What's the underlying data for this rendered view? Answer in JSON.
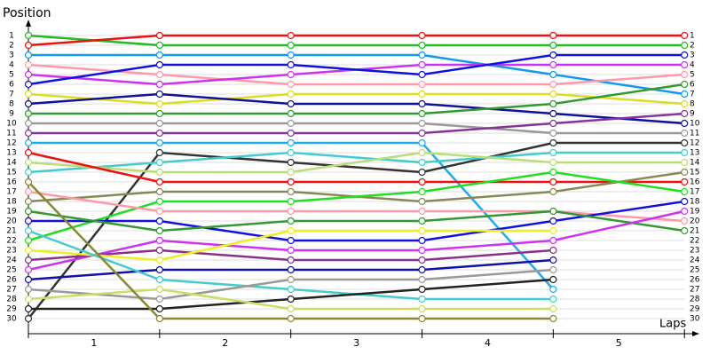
{
  "chart_data": {
    "type": "line",
    "y_label": "Position",
    "x_label": "Laps",
    "x": [
      0,
      1,
      2,
      3,
      4,
      5
    ],
    "xlim": [
      0,
      5.1
    ],
    "xticks": [
      {
        "value": 0.5,
        "label": "1"
      },
      {
        "value": 1.5,
        "label": "2"
      },
      {
        "value": 2.5,
        "label": "3"
      },
      {
        "value": 3.5,
        "label": "4"
      },
      {
        "value": 4.5,
        "label": "5"
      }
    ],
    "ylim": [
      31.5,
      -0.5
    ],
    "yticks": [
      1,
      2,
      3,
      4,
      5,
      6,
      7,
      8,
      9,
      10,
      11,
      12,
      13,
      14,
      15,
      16,
      17,
      18,
      19,
      20,
      21,
      22,
      23,
      24,
      25,
      26,
      27,
      28,
      29,
      30
    ],
    "grid": true,
    "series": [
      {
        "color": "#22bb22",
        "values": [
          1,
          2,
          2,
          2,
          2,
          2
        ]
      },
      {
        "color": "#ee1111",
        "values": [
          2,
          1,
          1,
          1,
          1,
          1
        ]
      },
      {
        "color": "#1199ee",
        "values": [
          3,
          3,
          3,
          3,
          5,
          7
        ]
      },
      {
        "color": "#ff99aa",
        "values": [
          4,
          5,
          6,
          6,
          6,
          5
        ]
      },
      {
        "color": "#cc33ee",
        "values": [
          5,
          6,
          5,
          4,
          4,
          4
        ]
      },
      {
        "color": "#1111dd",
        "values": [
          6,
          4,
          4,
          5,
          3,
          3
        ]
      },
      {
        "color": "#dddd22",
        "values": [
          7,
          8,
          7,
          7,
          7,
          8
        ]
      },
      {
        "color": "#111199",
        "values": [
          8,
          7,
          8,
          8,
          9,
          10
        ]
      },
      {
        "color": "#339933",
        "values": [
          9,
          9,
          9,
          9,
          8,
          6
        ]
      },
      {
        "color": "#999999",
        "values": [
          10,
          10,
          10,
          10,
          11,
          11
        ]
      },
      {
        "color": "#883399",
        "values": [
          11,
          11,
          11,
          11,
          10,
          9
        ]
      },
      {
        "color": "#22aaee",
        "values": [
          12,
          12,
          12,
          12,
          27,
          null
        ]
      },
      {
        "color": "#333333",
        "values": [
          30,
          13,
          14,
          15,
          12,
          12
        ]
      },
      {
        "color": "#44cccc",
        "values": [
          15,
          14,
          13,
          14,
          13,
          13
        ]
      },
      {
        "color": "#bbdd77",
        "values": [
          14,
          15,
          15,
          13,
          14,
          14
        ]
      },
      {
        "color": "#ee1111",
        "values": [
          13,
          16,
          16,
          16,
          16,
          16
        ]
      },
      {
        "color": "#888855",
        "values": [
          18,
          17,
          17,
          18,
          17,
          15
        ]
      },
      {
        "color": "#22dd22",
        "values": [
          22,
          18,
          18,
          17,
          15,
          17
        ]
      },
      {
        "color": "#ff99aa",
        "values": [
          17,
          19,
          19,
          19,
          19,
          20
        ]
      },
      {
        "color": "#1111dd",
        "values": [
          20,
          20,
          22,
          22,
          20,
          18
        ]
      },
      {
        "color": "#339933",
        "values": [
          19,
          21,
          20,
          20,
          19,
          21
        ]
      },
      {
        "color": "#cc33ee",
        "values": [
          25,
          22,
          23,
          23,
          22,
          19
        ]
      },
      {
        "color": "#883388",
        "values": [
          24,
          23,
          24,
          24,
          23,
          null
        ]
      },
      {
        "color": "#eeee22",
        "values": [
          23,
          24,
          21,
          21,
          21,
          null
        ]
      },
      {
        "color": "#1111aa",
        "values": [
          26,
          25,
          25,
          25,
          24,
          null
        ]
      },
      {
        "color": "#44cccc",
        "values": [
          21,
          26,
          27,
          28,
          28,
          null
        ]
      },
      {
        "color": "#999999",
        "values": [
          27,
          28,
          26,
          26,
          25,
          null
        ]
      },
      {
        "color": "#222222",
        "values": [
          29,
          29,
          28,
          27,
          26,
          null
        ]
      },
      {
        "color": "#ccdd66",
        "values": [
          28,
          27,
          29,
          29,
          29,
          null
        ]
      },
      {
        "color": "#888833",
        "values": [
          16,
          30,
          30,
          30,
          30,
          null
        ]
      }
    ]
  }
}
